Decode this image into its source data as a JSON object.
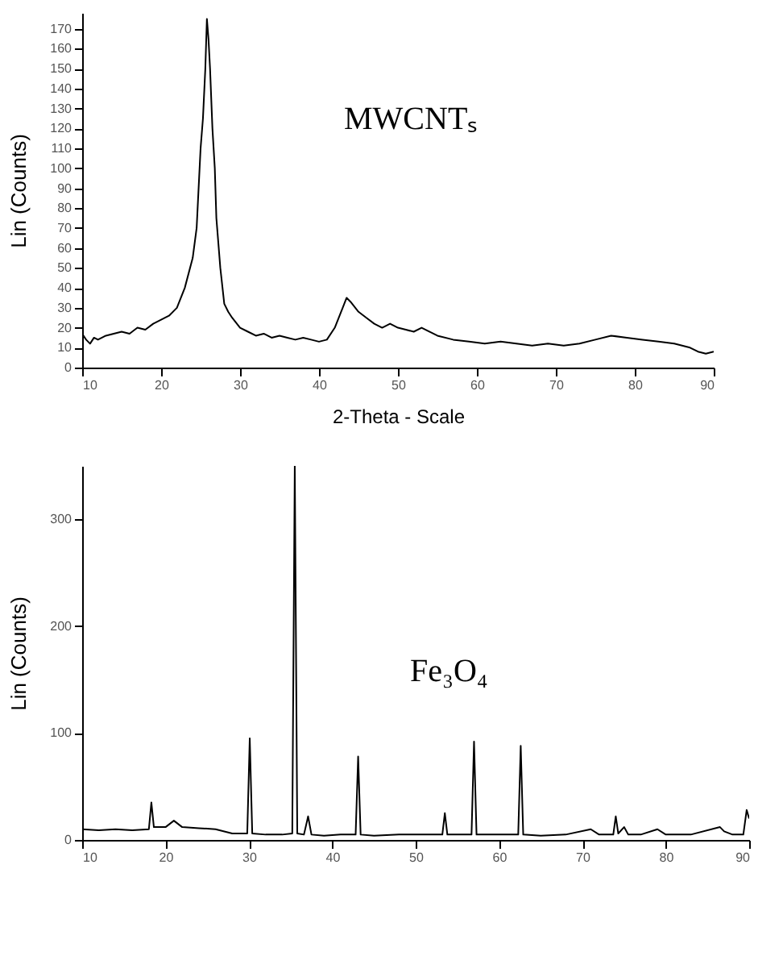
{
  "chart_data": [
    {
      "type": "line",
      "xlabel": "2-Theta - Scale",
      "ylabel": "Lin (Counts)",
      "annotations": [
        "MWCNTₛ"
      ],
      "grid": false,
      "marker": "none",
      "xlim": [
        10,
        90
      ],
      "xticks": [
        10,
        20,
        30,
        40,
        50,
        60,
        70,
        80,
        90
      ],
      "ylim": [
        0,
        178
      ],
      "yticks": [
        0,
        10,
        20,
        30,
        40,
        50,
        60,
        70,
        80,
        90,
        100,
        110,
        120,
        130,
        140,
        150,
        160,
        170
      ],
      "series": [
        {
          "color": "#000000",
          "x": [
            10,
            10.5,
            11,
            11.5,
            12,
            13,
            14,
            15,
            16,
            17,
            18,
            19,
            20,
            21,
            22,
            23,
            24,
            24.5,
            25,
            25.3,
            25.6,
            25.8,
            26,
            26.2,
            26.5,
            26.8,
            27,
            27.5,
            28,
            28.5,
            29,
            30,
            31,
            32,
            33,
            34,
            35,
            36,
            37,
            38,
            39,
            40,
            41,
            42,
            43,
            43.5,
            44,
            45,
            46,
            47,
            48,
            49,
            50,
            51,
            52,
            53,
            55,
            57,
            59,
            61,
            63,
            65,
            67,
            69,
            71,
            73,
            75,
            77,
            79,
            81,
            83,
            85,
            87,
            88,
            89,
            90
          ],
          "values": [
            17,
            14,
            12,
            15,
            14,
            16,
            17,
            18,
            17,
            20,
            19,
            22,
            24,
            26,
            30,
            40,
            55,
            70,
            110,
            125,
            150,
            175,
            165,
            150,
            120,
            100,
            75,
            50,
            32,
            28,
            25,
            20,
            18,
            16,
            17,
            15,
            16,
            15,
            14,
            15,
            14,
            13,
            14,
            20,
            30,
            35,
            33,
            28,
            25,
            22,
            20,
            22,
            20,
            19,
            18,
            20,
            16,
            14,
            13,
            12,
            13,
            12,
            11,
            12,
            11,
            12,
            14,
            16,
            15,
            14,
            13,
            12,
            10,
            8,
            7,
            8
          ]
        }
      ]
    },
    {
      "type": "line",
      "ylabel": "Lin (Counts)",
      "annotations": [
        "Fe₃O₄"
      ],
      "grid": false,
      "marker": "none",
      "xlim": [
        10,
        90
      ],
      "xticks": [
        10,
        20,
        30,
        40,
        50,
        60,
        70,
        80,
        90
      ],
      "ylim": [
        0,
        350
      ],
      "yticks": [
        0,
        100,
        200,
        300
      ],
      "series": [
        {
          "color": "#000000",
          "x": [
            10,
            12,
            14,
            16,
            18,
            18.3,
            18.6,
            20,
            21,
            22,
            24,
            26,
            28,
            29.8,
            30.1,
            30.4,
            32,
            34,
            35.2,
            35.5,
            35.8,
            36.6,
            37.1,
            37.5,
            39,
            41,
            42.8,
            43.1,
            43.4,
            45,
            48,
            51,
            53.2,
            53.5,
            53.8,
            56.7,
            57.0,
            57.3,
            60,
            62.3,
            62.6,
            62.9,
            65,
            68,
            71,
            72,
            73.7,
            74,
            74.3,
            75,
            75.5,
            77,
            79,
            80,
            83,
            86.5,
            87,
            88,
            89.3,
            89.7,
            90
          ],
          "values": [
            10,
            9,
            10,
            9,
            10,
            35,
            12,
            12,
            18,
            12,
            11,
            10,
            6,
            6,
            95,
            6,
            5,
            5,
            6,
            350,
            6,
            5,
            22,
            5,
            4,
            5,
            5,
            78,
            5,
            4,
            5,
            5,
            5,
            25,
            5,
            5,
            92,
            5,
            5,
            5,
            88,
            5,
            4,
            5,
            10,
            5,
            5,
            22,
            6,
            12,
            5,
            5,
            10,
            5,
            5,
            12,
            8,
            5,
            5,
            28,
            20
          ]
        }
      ]
    }
  ]
}
